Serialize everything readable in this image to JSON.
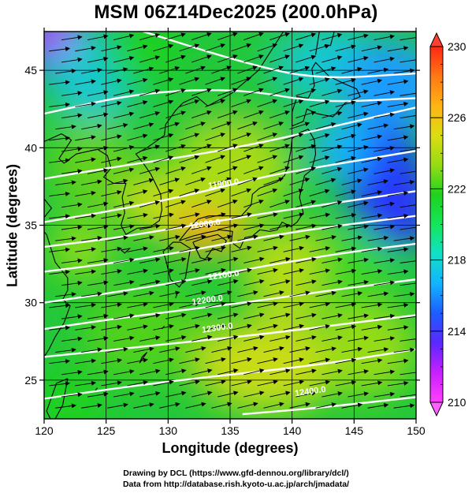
{
  "title": "MSM 06Z14Dec2025 (200.0hPa)",
  "x_axis": {
    "label": "Longitude (degrees)",
    "range": [
      120,
      150
    ],
    "ticks": [
      "120",
      "125",
      "130",
      "135",
      "140",
      "145",
      "150"
    ]
  },
  "y_axis": {
    "label": "Latitude  (degrees)",
    "range": [
      22.5,
      47.5
    ],
    "ticks": [
      "25",
      "30",
      "35",
      "40",
      "45"
    ]
  },
  "colorbar": {
    "range": [
      210,
      230
    ],
    "ticks": [
      "210",
      "214",
      "218",
      "222",
      "226",
      "230"
    ],
    "colors": [
      "#ff40ff",
      "#c820ff",
      "#5a28ff",
      "#1e5cff",
      "#12b4ff",
      "#12e0c8",
      "#14e65a",
      "#1ed21e",
      "#96dc14",
      "#dcdc14",
      "#ffb414",
      "#ff7814",
      "#ff2814"
    ]
  },
  "contours": {
    "labels": [
      "11900.0",
      "12000.0",
      "12100.0",
      "12200.0",
      "12300.0",
      "12400.0"
    ]
  },
  "credits": {
    "line1": "Drawing by DCL (https://www.gfd-dennou.org/library/dcl/)",
    "line2": "Data from http://database.rish.kyoto-u.ac.jp/arch/jmadata/"
  }
}
